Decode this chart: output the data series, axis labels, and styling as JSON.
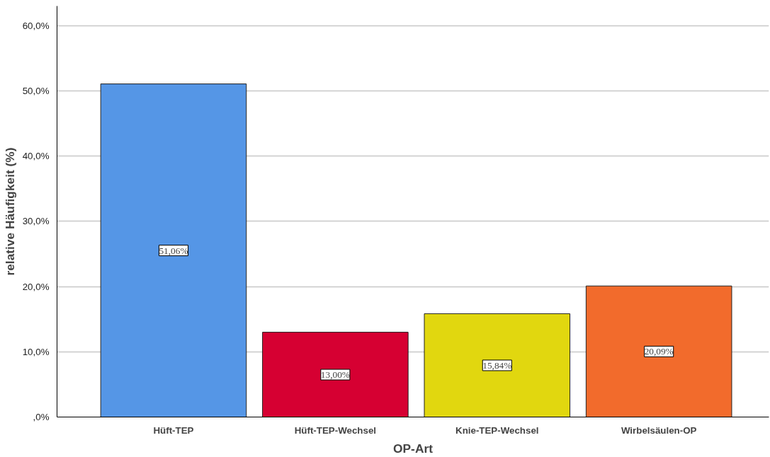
{
  "chart_data": {
    "type": "bar",
    "xlabel": "OP-Art",
    "ylabel": "relative Häufigkeit (%)",
    "categories": [
      "Hüft-TEP",
      "Hüft-TEP-Wechsel",
      "Knie-TEP-Wechsel",
      "Wirbelsäulen-OP"
    ],
    "values": [
      51.06,
      13.0,
      15.84,
      20.09
    ],
    "colors": [
      "#5596e6",
      "#d60032",
      "#e1d70f",
      "#f26b2c"
    ],
    "value_labels": [
      "51,06%",
      "13,00%",
      "15,84%",
      "20,09%"
    ],
    "ylim": [
      0,
      63
    ],
    "yticks": [
      {
        "value": 0,
        "label": ",0%"
      },
      {
        "value": 10,
        "label": "10,0%"
      },
      {
        "value": 20,
        "label": "20,0%"
      },
      {
        "value": 30,
        "label": "30,0%"
      },
      {
        "value": 40,
        "label": "40,0%"
      },
      {
        "value": 50,
        "label": "50,0%"
      },
      {
        "value": 60,
        "label": "60,0%"
      }
    ],
    "grid": "y"
  }
}
